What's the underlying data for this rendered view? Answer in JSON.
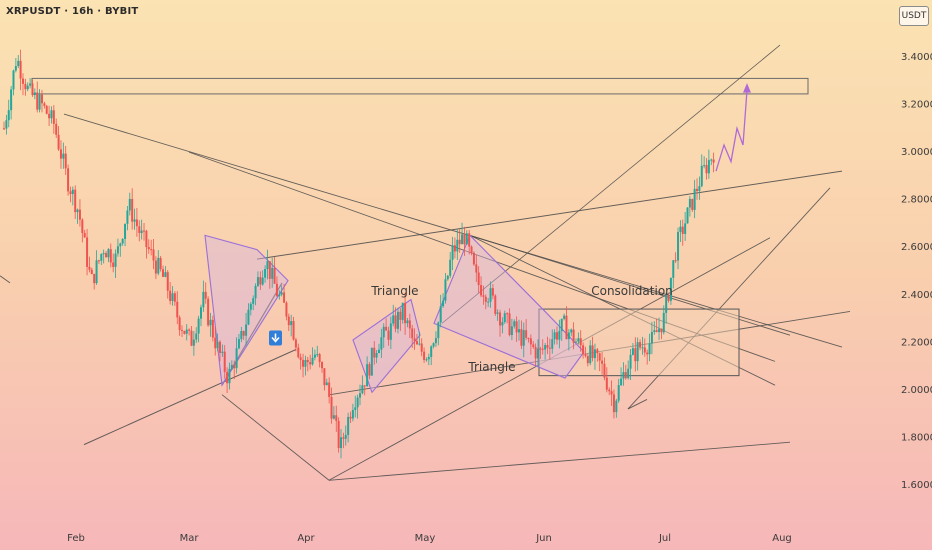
{
  "header": {
    "symbol_title": "XRPUSDT · 16h · BYBIT",
    "currency": "USDT"
  },
  "colors": {
    "up": "#26a69a",
    "down": "#ef5350",
    "pattern": "#9a6fd8",
    "line": "#4a4a4a",
    "box_fill": "#f5d3b4"
  },
  "chart_data": {
    "type": "candlestick",
    "title": "XRPUSDT · 16h · BYBIT",
    "yaxis": {
      "ticks": [
        3.4,
        3.2,
        3.0,
        2.8,
        2.6,
        2.4,
        2.2,
        2.0,
        1.8,
        1.6
      ],
      "range": [
        1.5,
        3.5
      ],
      "unit": "USDT"
    },
    "xaxis": {
      "ticks": [
        "Feb",
        "Mar",
        "Apr",
        "May",
        "Jun",
        "Jul",
        "Aug"
      ]
    },
    "annotations": [
      {
        "text": "Triangle"
      },
      {
        "text": "Triangle"
      },
      {
        "text": "Consolidation"
      }
    ],
    "projection": {
      "target": 3.28
    },
    "ohlc_anchors": [
      3.1,
      3.4,
      3.25,
      3.2,
      3.12,
      2.9,
      2.75,
      2.45,
      2.6,
      2.55,
      2.78,
      2.65,
      2.55,
      2.45,
      2.3,
      2.2,
      2.38,
      2.2,
      2.05,
      2.2,
      2.4,
      2.55,
      2.4,
      2.3,
      2.1,
      2.15,
      2.0,
      1.75,
      1.95,
      2.05,
      2.2,
      2.25,
      2.33,
      2.18,
      2.15,
      2.3,
      2.58,
      2.65,
      2.45,
      2.4,
      2.3,
      2.25,
      2.2,
      2.15,
      2.22,
      2.27,
      2.2,
      2.15,
      2.1,
      1.95,
      2.1,
      2.18,
      2.2,
      2.3,
      2.6,
      2.75,
      2.9,
      3.0
    ]
  }
}
